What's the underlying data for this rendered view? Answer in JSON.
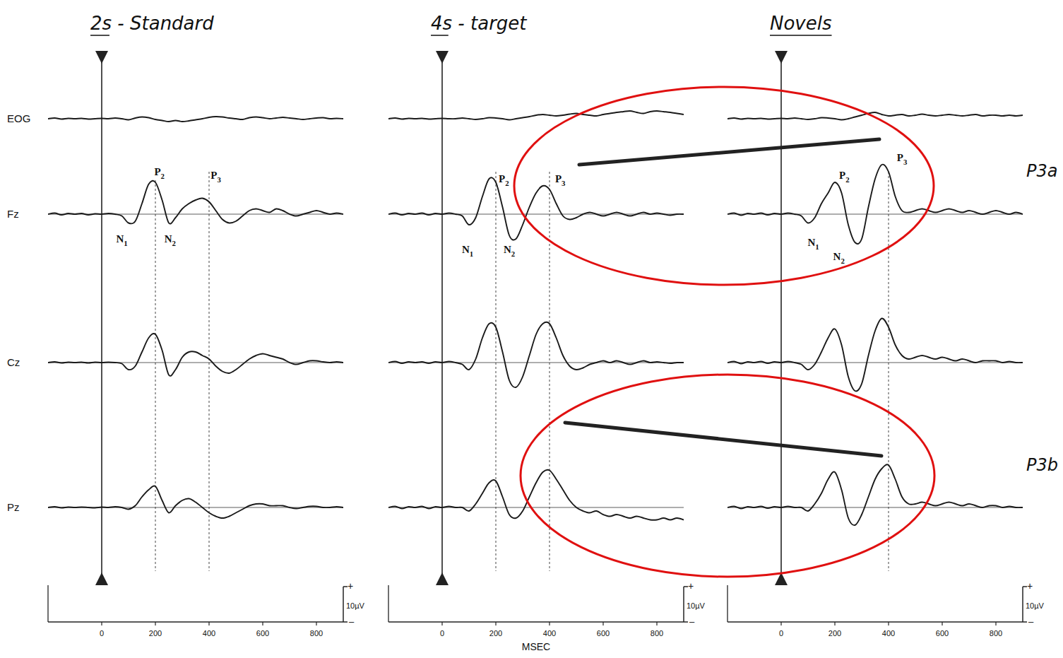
{
  "chart_data": [
    {
      "type": "line",
      "title": "2s - Standard",
      "x": [
        -200,
        -175,
        -150,
        -125,
        -100,
        -75,
        -50,
        -25,
        0,
        25,
        50,
        75,
        100,
        125,
        150,
        175,
        200,
        225,
        250,
        275,
        300,
        325,
        350,
        375,
        400,
        425,
        450,
        475,
        500,
        525,
        550,
        575,
        600,
        625,
        650,
        675,
        700,
        725,
        750,
        775,
        800,
        825,
        850,
        875,
        900
      ],
      "xlim": [
        -200,
        900
      ],
      "xticks": [
        0,
        200,
        400,
        600,
        800
      ],
      "ylim": [
        -20,
        20
      ],
      "tick_labels": "x",
      "scale_bar": {
        "value": 10,
        "label": "10µV",
        "plus": "+",
        "minus": "–"
      },
      "reference_lines": [
        200,
        400
      ],
      "annotations": [
        {
          "text": "N1",
          "x": 75,
          "y": -8
        },
        {
          "text": "P2",
          "x": 215,
          "y": 11
        },
        {
          "text": "N2",
          "x": 255,
          "y": -8
        },
        {
          "text": "P3",
          "x": 425,
          "y": 10
        }
      ],
      "series": [
        {
          "name": "EOG",
          "color": "#1a1a1a",
          "values": [
            0,
            0.2,
            -0.1,
            0.1,
            0,
            0.1,
            -0.1,
            0,
            0.1,
            0,
            0.2,
            0,
            -0.3,
            0.2,
            0.5,
            0.3,
            -0.2,
            -0.5,
            -0.8,
            -0.5,
            -0.8,
            -0.6,
            -0.3,
            0,
            0.4,
            0.6,
            0.5,
            0.2,
            0,
            -0.2,
            0.3,
            0.5,
            0.3,
            0,
            0.2,
            0.4,
            0.2,
            0,
            -0.2,
            0,
            0.2,
            0.3,
            0,
            0.1,
            0
          ]
        },
        {
          "name": "Fz",
          "color": "#1a1a1a",
          "values": [
            0,
            0.3,
            -0.2,
            0.2,
            0,
            0.2,
            -0.2,
            0.1,
            0,
            0.2,
            0,
            -0.5,
            -2.5,
            -2,
            3,
            8.5,
            9,
            4,
            -2.5,
            -1,
            1.5,
            3,
            4,
            4.5,
            3.5,
            1,
            -1.5,
            -2.5,
            -2,
            -0.5,
            1,
            1.5,
            1,
            0.5,
            1.5,
            1,
            0,
            -0.5,
            0,
            0.5,
            1,
            0.5,
            0,
            0.3,
            0
          ]
        },
        {
          "name": "Cz",
          "color": "#1a1a1a",
          "values": [
            0,
            0.2,
            -0.1,
            0.1,
            0,
            0.1,
            -0.1,
            0.1,
            0,
            0.1,
            0,
            -0.3,
            -2,
            -1,
            3,
            7,
            8,
            3.5,
            -3.5,
            -2,
            1.5,
            3,
            3,
            2,
            1,
            -1,
            -2.5,
            -3,
            -2,
            -0.5,
            1,
            2,
            2.5,
            2,
            1.5,
            1,
            0,
            -0.5,
            0,
            0.5,
            0.5,
            0.2,
            0,
            0.2,
            0
          ]
        },
        {
          "name": "Pz",
          "color": "#1a1a1a",
          "values": [
            0,
            0.2,
            -0.1,
            0.1,
            0,
            0.1,
            0,
            -0.1,
            0.1,
            0,
            0.2,
            0,
            -0.5,
            0.5,
            3,
            5,
            6,
            2,
            -1.5,
            0.5,
            2,
            2.5,
            1.5,
            0,
            -1.5,
            -2.5,
            -3,
            -2.5,
            -1.5,
            -0.5,
            0.5,
            1,
            1,
            0.5,
            0.5,
            0.5,
            0,
            -0.3,
            0,
            0.3,
            0.3,
            0,
            0,
            0.2,
            0
          ]
        }
      ]
    },
    {
      "type": "line",
      "title": "4s - target",
      "x": [
        -200,
        -175,
        -150,
        -125,
        -100,
        -75,
        -50,
        -25,
        0,
        25,
        50,
        75,
        100,
        125,
        150,
        175,
        200,
        225,
        250,
        275,
        300,
        325,
        350,
        375,
        400,
        425,
        450,
        475,
        500,
        525,
        550,
        575,
        600,
        625,
        650,
        675,
        700,
        725,
        750,
        775,
        800,
        825,
        850,
        875,
        900
      ],
      "xlim": [
        -200,
        900
      ],
      "xticks": [
        0,
        200,
        400,
        600,
        800
      ],
      "ylim": [
        -20,
        20
      ],
      "tick_labels": "x",
      "x_label": "MSEC",
      "scale_bar": {
        "value": 10,
        "label": "10µV",
        "plus": "+",
        "minus": "–"
      },
      "reference_lines": [
        200,
        400
      ],
      "annotations": [
        {
          "text": "N1",
          "x": 95,
          "y": -11
        },
        {
          "text": "P2",
          "x": 230,
          "y": 9
        },
        {
          "text": "N2",
          "x": 250,
          "y": -11
        },
        {
          "text": "P3",
          "x": 440,
          "y": 9
        }
      ],
      "series": [
        {
          "name": "EOG",
          "color": "#1a1a1a",
          "values": [
            0,
            0.2,
            -0.1,
            0.1,
            0,
            0.1,
            -0.1,
            0,
            0.1,
            0,
            0,
            0.2,
            0,
            -0.2,
            0,
            0.3,
            0.2,
            0,
            -0.3,
            0,
            0.3,
            0.6,
            1,
            1.2,
            1,
            0.8,
            1,
            1.3,
            1.5,
            1.2,
            1,
            0.8,
            1.2,
            1.5,
            1.8,
            2,
            2.2,
            1.8,
            1.5,
            2,
            2.2,
            2,
            1.8,
            1.5,
            1.2
          ]
        },
        {
          "name": "Fz",
          "color": "#1a1a1a",
          "values": [
            0,
            0.3,
            -0.2,
            0.2,
            0,
            0.3,
            -0.2,
            0.2,
            0,
            0.3,
            0,
            -0.5,
            -3,
            -1,
            5,
            10,
            9,
            2,
            -6,
            -7,
            -3,
            2,
            6,
            8,
            7,
            3,
            -0.5,
            -1.5,
            -1,
            0,
            0.5,
            0,
            -0.5,
            0,
            0.5,
            0,
            -0.5,
            0,
            0.5,
            0,
            0.3,
            0,
            -0.3,
            0,
            0
          ]
        },
        {
          "name": "Cz",
          "color": "#1a1a1a",
          "values": [
            0,
            0.3,
            -0.2,
            0.2,
            0,
            0.2,
            -0.2,
            0.2,
            0,
            0.3,
            0,
            -0.5,
            -2,
            1,
            7,
            11,
            10,
            3,
            -5,
            -7,
            -4,
            2,
            8,
            11,
            11,
            7,
            2,
            -1,
            -2,
            -1.5,
            -0.5,
            0,
            0.5,
            0,
            0.5,
            0,
            -0.5,
            0,
            0.5,
            0,
            0.2,
            0,
            -0.2,
            0,
            0
          ]
        },
        {
          "name": "Pz",
          "color": "#1a1a1a",
          "values": [
            0,
            0.3,
            -0.3,
            0.2,
            0,
            0.3,
            -0.3,
            0.2,
            0,
            0.3,
            0,
            0,
            -1,
            1,
            4,
            7,
            7.5,
            3,
            -2,
            -3,
            -1,
            3,
            7,
            10,
            10.5,
            8,
            5,
            2,
            0,
            -1,
            -1.5,
            -1,
            -2,
            -2.5,
            -2,
            -2.5,
            -3,
            -2.5,
            -3,
            -3.5,
            -3.5,
            -3,
            -3.5,
            -3,
            -3.5
          ]
        }
      ]
    },
    {
      "type": "line",
      "title": "Novels",
      "x": [
        -200,
        -175,
        -150,
        -125,
        -100,
        -75,
        -50,
        -25,
        0,
        25,
        50,
        75,
        100,
        125,
        150,
        175,
        200,
        225,
        250,
        275,
        300,
        325,
        350,
        375,
        400,
        425,
        450,
        475,
        500,
        525,
        550,
        575,
        600,
        625,
        650,
        675,
        700,
        725,
        750,
        775,
        800,
        825,
        850,
        875,
        900
      ],
      "xlim": [
        -200,
        900
      ],
      "xticks": [
        0,
        200,
        400,
        600,
        800
      ],
      "ylim": [
        -20,
        20
      ],
      "tick_labels": "x",
      "scale_bar": {
        "value": 10,
        "label": "10µV",
        "plus": "+",
        "minus": "–"
      },
      "reference_lines": [
        400
      ],
      "annotations": [
        {
          "text": "N1",
          "x": 120,
          "y": -9
        },
        {
          "text": "P2",
          "x": 235,
          "y": 10
        },
        {
          "text": "N2",
          "x": 215,
          "y": -13
        },
        {
          "text": "P3",
          "x": 450,
          "y": 15
        }
      ],
      "series": [
        {
          "name": "EOG",
          "color": "#1a1a1a",
          "values": [
            0,
            0.2,
            -0.1,
            0.1,
            0,
            0.1,
            -0.1,
            0,
            0.1,
            0,
            0.2,
            0,
            -0.2,
            0,
            0.3,
            0.2,
            0,
            -0.3,
            0,
            0.5,
            1,
            1.5,
            1.8,
            1.2,
            0.8,
            1,
            1.2,
            0.8,
            1,
            1.3,
            1,
            0.8,
            1,
            1.2,
            1,
            0.8,
            1,
            1.2,
            0.8,
            1,
            1,
            0.8,
            1,
            0.8,
            1
          ]
        },
        {
          "name": "Fz",
          "color": "#1a1a1a",
          "values": [
            0,
            0.3,
            -0.3,
            0.2,
            0,
            0.3,
            -0.2,
            0.2,
            0,
            0.3,
            0,
            -0.5,
            -2.5,
            -1,
            3,
            6,
            9,
            6,
            -3,
            -8,
            -7,
            2,
            10,
            14,
            12,
            5,
            1,
            0.5,
            1,
            1.5,
            1,
            0.5,
            1,
            1.5,
            1,
            0.5,
            1,
            0.5,
            0,
            0.5,
            1,
            0.5,
            0,
            0.5,
            0
          ]
        },
        {
          "name": "Cz",
          "color": "#1a1a1a",
          "values": [
            0,
            0.3,
            -0.3,
            0.2,
            0,
            0.3,
            -0.2,
            0.2,
            0,
            0.3,
            0,
            -0.5,
            -2,
            -0.5,
            3,
            7,
            9.5,
            5,
            -4,
            -8,
            -6,
            2,
            9,
            12.5,
            10,
            5,
            2,
            1,
            1.5,
            2,
            1.5,
            1,
            1.5,
            1,
            0.5,
            1,
            0.5,
            0,
            0.5,
            0.5,
            0.5,
            0,
            0.3,
            0,
            0
          ]
        },
        {
          "name": "Pz",
          "color": "#1a1a1a",
          "values": [
            0,
            0.3,
            -0.3,
            0.2,
            0,
            0.3,
            -0.2,
            0.2,
            0,
            0.3,
            0,
            0,
            -1,
            1,
            4,
            8,
            10,
            5,
            -3,
            -5,
            -2,
            3,
            8,
            11,
            12,
            8,
            3,
            1,
            1,
            1.5,
            1,
            0.5,
            1,
            1.5,
            1,
            0.5,
            1,
            0.5,
            0,
            0.5,
            0.5,
            0,
            0.3,
            0,
            0
          ]
        }
      ]
    }
  ],
  "annotations": [
    {
      "text": "P3a",
      "row": "Fz"
    },
    {
      "text": "P3b",
      "row": "Pz"
    }
  ]
}
